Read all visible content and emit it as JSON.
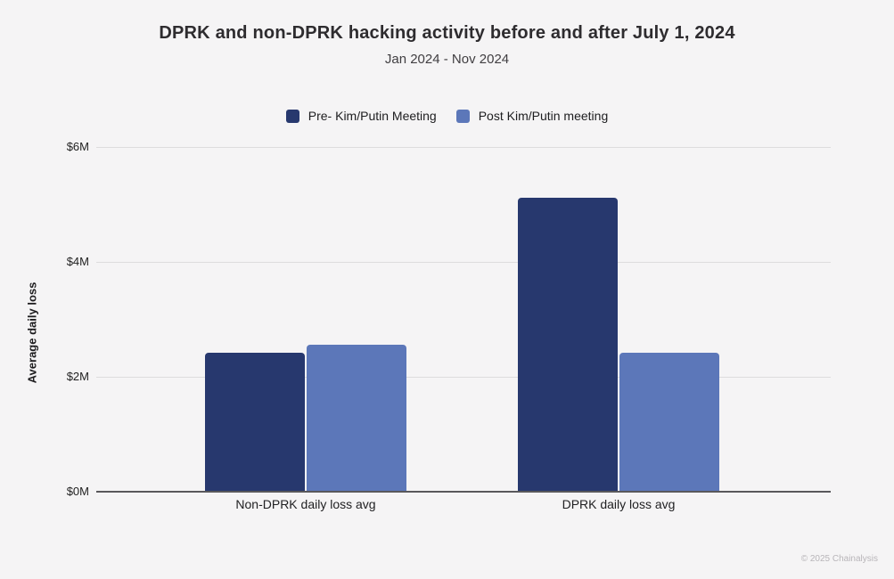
{
  "chart_data": {
    "type": "bar",
    "title": "DPRK and non-DPRK hacking activity before and after July 1, 2024",
    "subtitle": "Jan 2024 - Nov 2024",
    "categories": [
      "Non-DPRK daily loss avg",
      "DPRK daily loss avg"
    ],
    "series": [
      {
        "name": "Pre- Kim/Putin Meeting",
        "color": "#27386E",
        "values": [
          2.4,
          5.1
        ]
      },
      {
        "name": "Post Kim/Putin meeting",
        "color": "#5C77B9",
        "values": [
          2.55,
          2.4
        ]
      }
    ],
    "xlabel": "",
    "ylabel": "Average daily loss",
    "yticks": [
      "$0M",
      "$2M",
      "$4M",
      "$6M"
    ],
    "ylim": [
      0,
      6
    ],
    "grid": true,
    "legend_position": "top-center"
  },
  "footer": {
    "copyright": "© 2025 Chainalysis"
  },
  "colors": {
    "background": "#F5F4F5",
    "gridline": "#DDDCDD",
    "axis_line": "#59585C",
    "title_text": "#2E2C2F",
    "tick_text": "#1F1F1F",
    "footer_text": "#B8B5B9",
    "series_pre": "#27386E",
    "series_post": "#5C77B9"
  }
}
